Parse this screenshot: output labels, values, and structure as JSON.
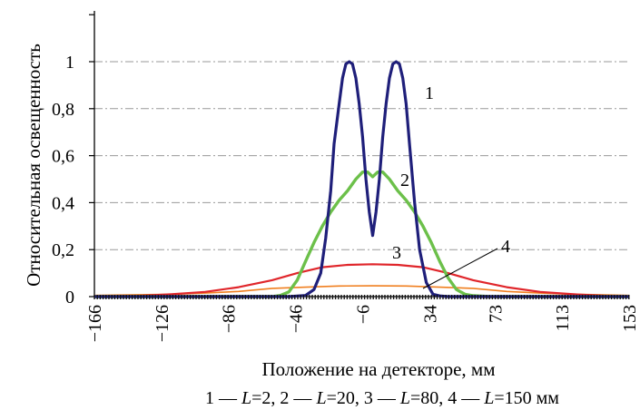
{
  "chart_data": {
    "type": "line",
    "title": "",
    "ylabel": "Относительная освещенность",
    "xlabel": "Положение на детекторе, мм",
    "caption": "1 — L=2, 2 — L=20, 3 — L=80, 4 — L=150 мм",
    "caption_parts": [
      "1 — ",
      "L",
      "=2, 2 — ",
      "L",
      "=20, 3 — ",
      "L",
      "=80, 4 — ",
      "L",
      "=150 мм"
    ],
    "x_ticks": [
      "−166",
      "−126",
      "−86",
      "−46",
      "−6",
      "34",
      "73",
      "113",
      "153"
    ],
    "x_tick_values": [
      -166,
      -126,
      -86,
      -46,
      -6,
      34,
      73,
      113,
      153
    ],
    "y_ticks": [
      "0",
      "0,2",
      "0,4",
      "0,6",
      "0,8",
      "1"
    ],
    "y_tick_values": [
      0,
      0.2,
      0.4,
      0.6,
      0.8,
      1.0
    ],
    "xlim": [
      -166,
      153
    ],
    "ylim": [
      0,
      1.1
    ],
    "grid": "horizontal dash-dot",
    "series": [
      {
        "name": "1",
        "color": "#1f1f7a",
        "x": [
          -166,
          -50,
          -40,
          -35,
          -31,
          -28,
          -25,
          -23,
          -20,
          -18,
          -16,
          -14,
          -12,
          -10,
          -8,
          -6,
          -4,
          -2,
          0,
          2,
          4,
          6,
          8,
          10,
          12,
          14,
          16,
          18,
          20,
          22,
          25,
          28,
          32,
          36,
          40,
          45,
          153
        ],
        "y": [
          0,
          0,
          0.005,
          0.03,
          0.1,
          0.25,
          0.45,
          0.65,
          0.82,
          0.93,
          0.99,
          1.0,
          0.99,
          0.93,
          0.82,
          0.68,
          0.5,
          0.36,
          0.26,
          0.36,
          0.5,
          0.68,
          0.82,
          0.93,
          0.99,
          1.0,
          0.99,
          0.93,
          0.82,
          0.65,
          0.4,
          0.2,
          0.06,
          0.01,
          0.003,
          0,
          0
        ]
      },
      {
        "name": "2",
        "color": "#6cc04a",
        "x": [
          -166,
          -60,
          -55,
          -50,
          -45,
          -40,
          -35,
          -30,
          -25,
          -20,
          -15,
          -10,
          -6,
          -3,
          0,
          3,
          6,
          10,
          15,
          20,
          25,
          30,
          35,
          40,
          45,
          50,
          55,
          60,
          70,
          153
        ],
        "y": [
          0,
          0,
          0.005,
          0.02,
          0.07,
          0.15,
          0.23,
          0.3,
          0.36,
          0.41,
          0.45,
          0.5,
          0.53,
          0.53,
          0.51,
          0.53,
          0.53,
          0.5,
          0.45,
          0.41,
          0.36,
          0.3,
          0.23,
          0.15,
          0.08,
          0.03,
          0.01,
          0.004,
          0,
          0
        ]
      },
      {
        "name": "3",
        "color": "#e0262b",
        "x": [
          -166,
          -140,
          -120,
          -100,
          -80,
          -60,
          -45,
          -30,
          -15,
          0,
          15,
          30,
          45,
          60,
          80,
          100,
          120,
          140,
          153
        ],
        "y": [
          0,
          0.003,
          0.01,
          0.02,
          0.04,
          0.07,
          0.1,
          0.125,
          0.135,
          0.138,
          0.135,
          0.125,
          0.1,
          0.07,
          0.04,
          0.02,
          0.01,
          0.003,
          0
        ]
      },
      {
        "name": "4",
        "color": "#f07f1f",
        "x": [
          -166,
          -120,
          -100,
          -80,
          -60,
          -40,
          -20,
          0,
          20,
          40,
          60,
          80,
          100,
          120,
          153
        ],
        "y": [
          0.005,
          0.01,
          0.015,
          0.022,
          0.035,
          0.04,
          0.045,
          0.046,
          0.045,
          0.04,
          0.035,
          0.022,
          0.015,
          0.01,
          0.005
        ]
      }
    ],
    "curve_labels": [
      "1",
      "2",
      "3",
      "4"
    ]
  }
}
